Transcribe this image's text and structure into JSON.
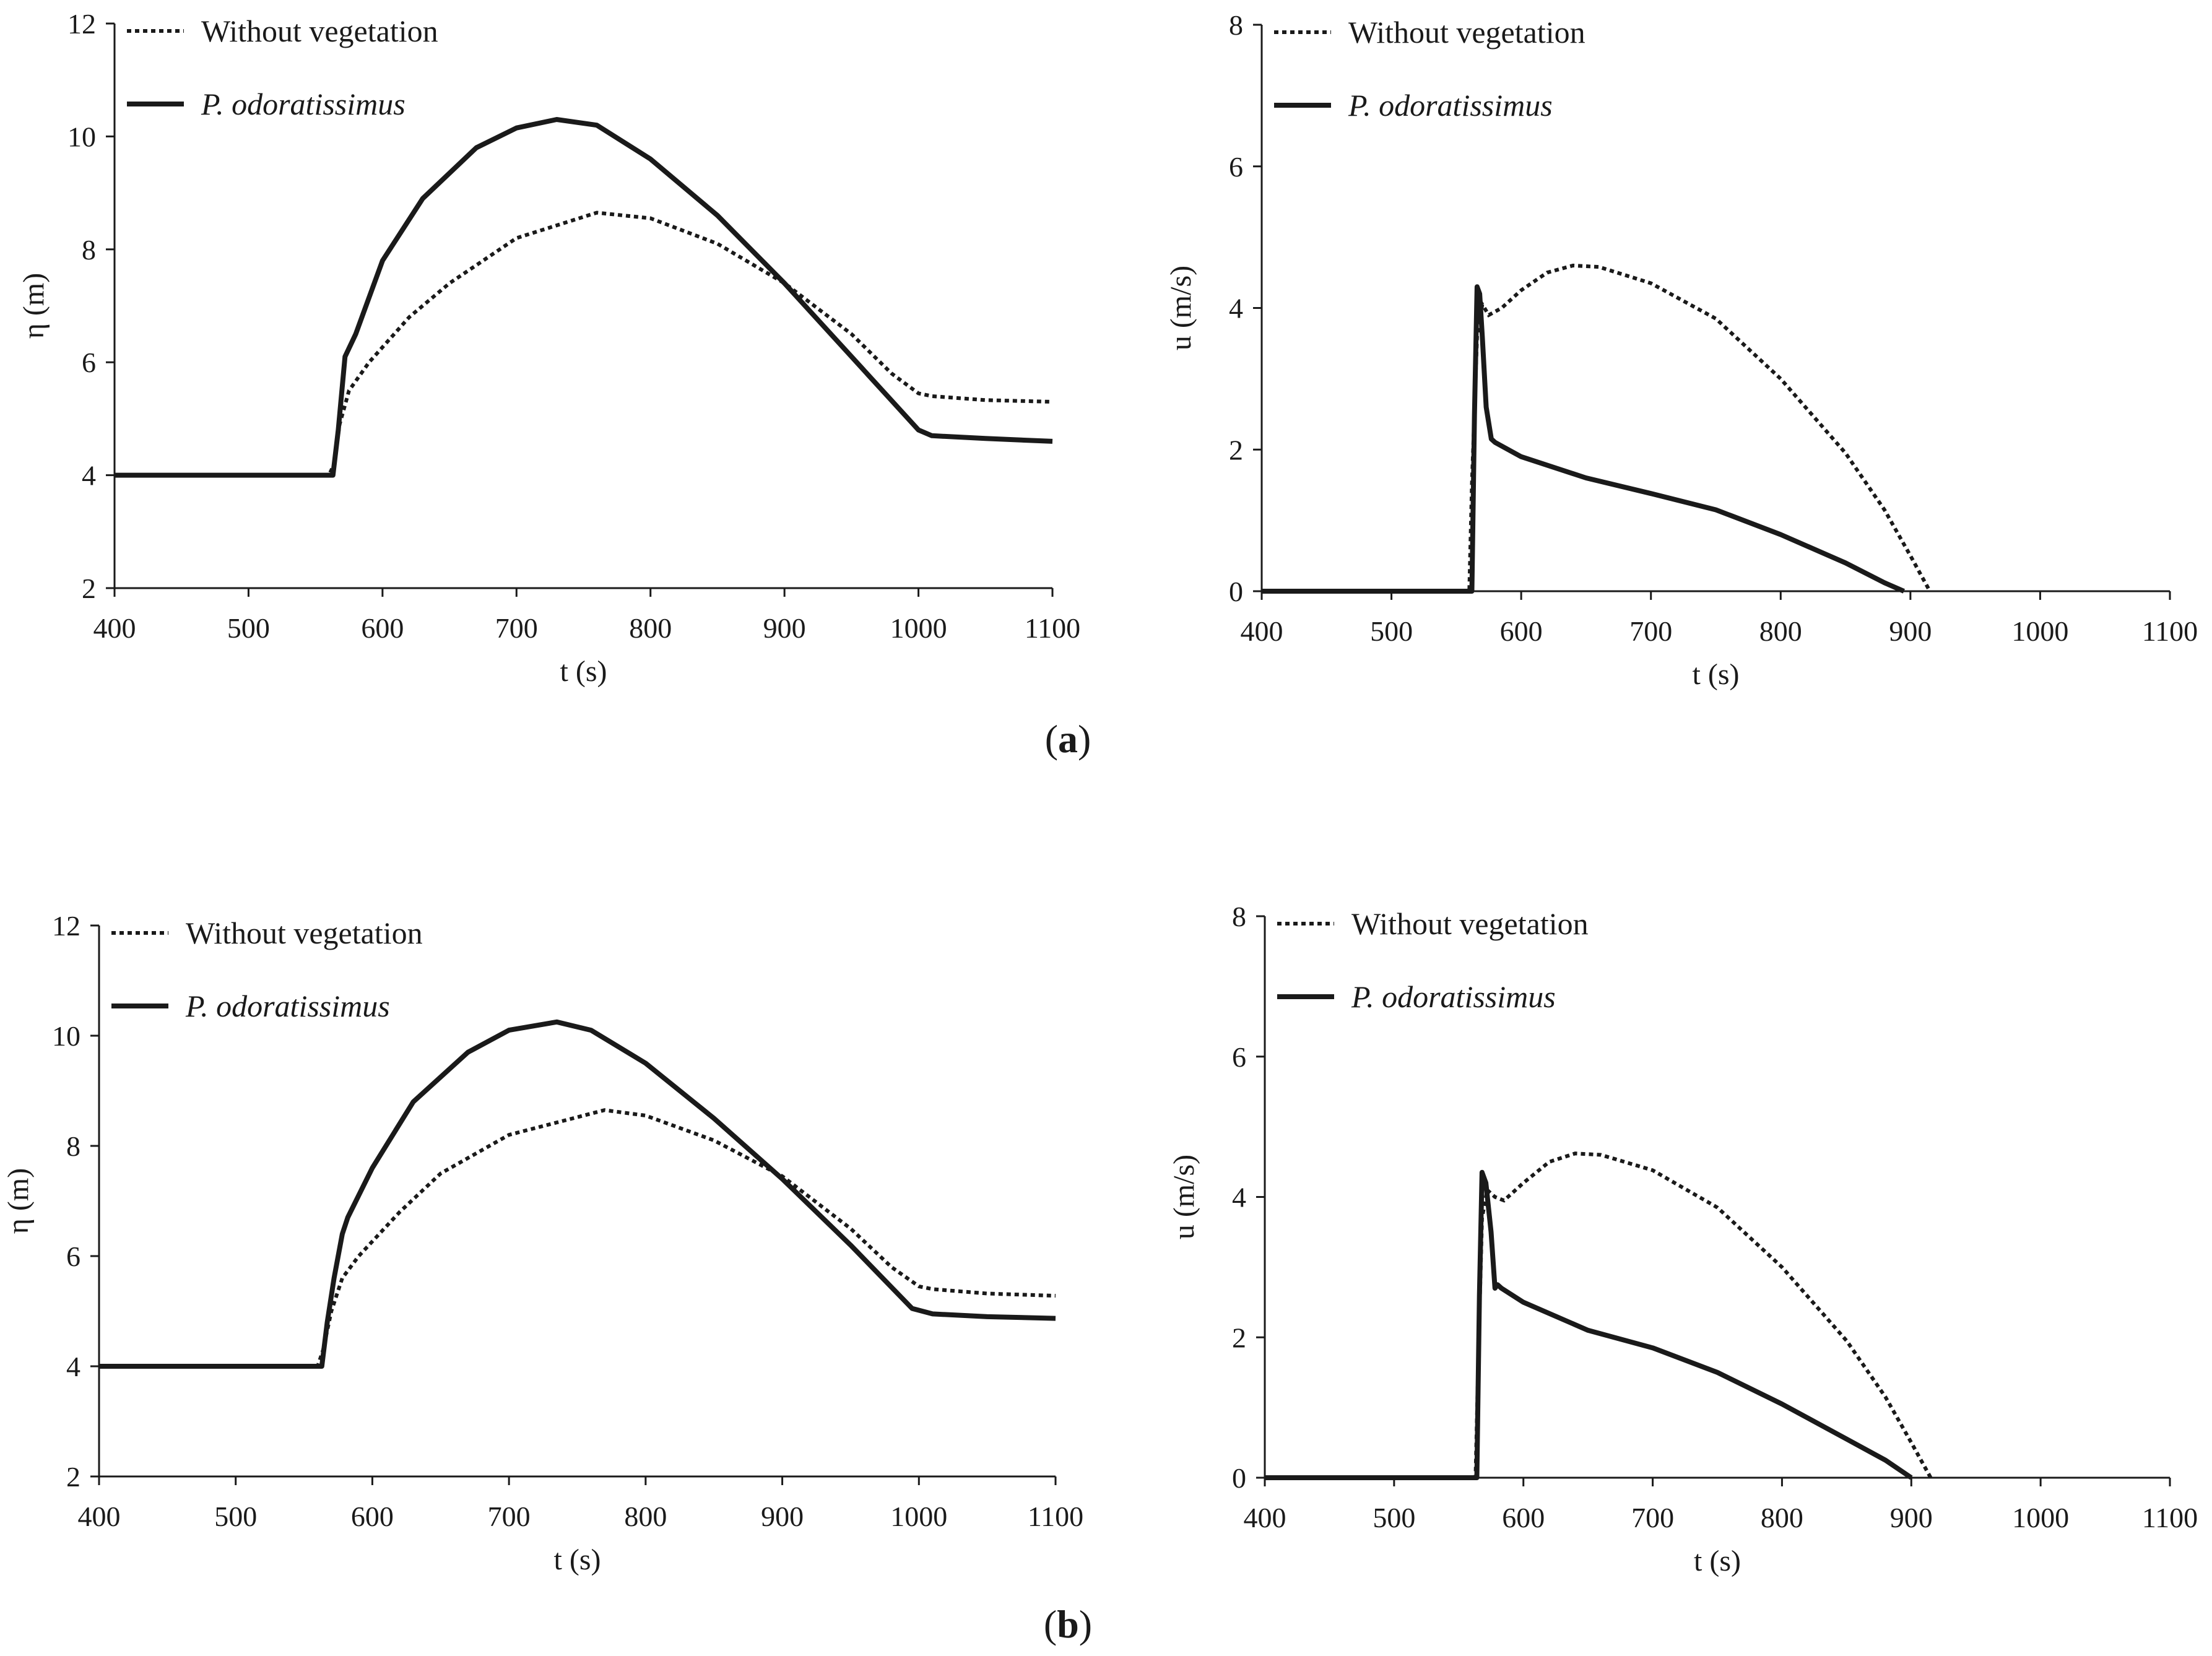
{
  "figure_labels": {
    "a": {
      "open": "(",
      "letter": "a",
      "close": ")"
    },
    "b": {
      "open": "(",
      "letter": "b",
      "close": ")"
    }
  },
  "chart_data": [
    {
      "id": "a-left",
      "type": "line",
      "xlabel": "t (s)",
      "ylabel": "η (m)",
      "xlim": [
        400,
        1100
      ],
      "ylim": [
        2,
        12
      ],
      "xticks": [
        400,
        500,
        600,
        700,
        800,
        900,
        1000,
        1100
      ],
      "yticks": [
        2,
        4,
        6,
        8,
        10,
        12
      ],
      "legend": "top-left",
      "series": [
        {
          "name": "Without vegetation",
          "style": "dotted",
          "x": [
            400,
            560,
            564,
            568,
            575,
            590,
            620,
            650,
            700,
            760,
            800,
            850,
            900,
            950,
            980,
            1000,
            1010,
            1050,
            1100
          ],
          "y": [
            4,
            4,
            4.2,
            4.9,
            5.5,
            6.0,
            6.8,
            7.4,
            8.2,
            8.65,
            8.55,
            8.1,
            7.4,
            6.5,
            5.8,
            5.45,
            5.4,
            5.33,
            5.3
          ]
        },
        {
          "name": "P. odoratissimus",
          "style": "solid",
          "x": [
            400,
            563,
            567,
            572,
            580,
            600,
            630,
            670,
            700,
            730,
            760,
            800,
            850,
            900,
            950,
            1000,
            1010,
            1050,
            1100
          ],
          "y": [
            4,
            4,
            4.8,
            6.1,
            6.5,
            7.8,
            8.9,
            9.8,
            10.15,
            10.3,
            10.2,
            9.6,
            8.6,
            7.4,
            6.1,
            4.8,
            4.7,
            4.65,
            4.6
          ]
        }
      ]
    },
    {
      "id": "a-right",
      "type": "line",
      "xlabel": "t (s)",
      "ylabel": "u (m/s)",
      "xlim": [
        400,
        1100
      ],
      "ylim": [
        0,
        8
      ],
      "xticks": [
        400,
        500,
        600,
        700,
        800,
        900,
        1000,
        1100
      ],
      "yticks": [
        0,
        2,
        4,
        6,
        8
      ],
      "legend": "top-left",
      "series": [
        {
          "name": "Without vegetation",
          "style": "dotted",
          "x": [
            400,
            560,
            562,
            566,
            570,
            575,
            585,
            600,
            620,
            640,
            660,
            700,
            750,
            800,
            850,
            880,
            900,
            915
          ],
          "y": [
            0,
            0,
            1.5,
            3.6,
            4.05,
            3.9,
            4.0,
            4.25,
            4.5,
            4.6,
            4.58,
            4.35,
            3.85,
            3.0,
            1.95,
            1.15,
            0.5,
            0
          ]
        },
        {
          "name": "P. odoratissimus",
          "style": "solid",
          "x": [
            400,
            562,
            564,
            566,
            568,
            570,
            573,
            577,
            580,
            600,
            650,
            700,
            750,
            800,
            850,
            880,
            895
          ],
          "y": [
            0,
            0,
            2.5,
            4.3,
            4.2,
            3.6,
            2.6,
            2.15,
            2.1,
            1.9,
            1.6,
            1.38,
            1.15,
            0.8,
            0.4,
            0.12,
            0
          ]
        }
      ]
    },
    {
      "id": "b-left",
      "type": "line",
      "xlabel": "t (s)",
      "ylabel": "η (m)",
      "xlim": [
        400,
        1100
      ],
      "ylim": [
        2,
        12
      ],
      "xticks": [
        400,
        500,
        600,
        700,
        800,
        900,
        1000,
        1100
      ],
      "yticks": [
        2,
        4,
        6,
        8,
        10,
        12
      ],
      "legend": "top-left",
      "series": [
        {
          "name": "Without vegetation",
          "style": "dotted",
          "x": [
            400,
            560,
            564,
            570,
            578,
            590,
            620,
            650,
            700,
            770,
            800,
            850,
            900,
            950,
            980,
            1000,
            1010,
            1050,
            1100
          ],
          "y": [
            4,
            4,
            4.3,
            5.0,
            5.6,
            6.0,
            6.8,
            7.5,
            8.2,
            8.65,
            8.55,
            8.1,
            7.45,
            6.5,
            5.8,
            5.45,
            5.4,
            5.32,
            5.28
          ]
        },
        {
          "name": "P. odoratissimus",
          "style": "solid",
          "x": [
            400,
            563,
            567,
            572,
            578,
            582,
            600,
            630,
            670,
            700,
            735,
            760,
            800,
            850,
            900,
            950,
            995,
            1010,
            1050,
            1100
          ],
          "y": [
            4,
            4,
            4.8,
            5.6,
            6.4,
            6.7,
            7.6,
            8.8,
            9.7,
            10.1,
            10.25,
            10.1,
            9.5,
            8.5,
            7.4,
            6.2,
            5.05,
            4.95,
            4.9,
            4.87
          ]
        }
      ]
    },
    {
      "id": "b-right",
      "type": "line",
      "xlabel": "t (s)",
      "ylabel": "u (m/s)",
      "xlim": [
        400,
        1100
      ],
      "ylim": [
        0,
        8
      ],
      "xticks": [
        400,
        500,
        600,
        700,
        800,
        900,
        1000,
        1100
      ],
      "yticks": [
        0,
        2,
        4,
        6,
        8
      ],
      "legend": "top-left",
      "series": [
        {
          "name": "Without vegetation",
          "style": "dotted",
          "x": [
            400,
            563,
            565,
            568,
            572,
            578,
            585,
            600,
            620,
            640,
            660,
            700,
            750,
            800,
            850,
            880,
            900,
            915
          ],
          "y": [
            0,
            0,
            1.6,
            3.7,
            4.1,
            4.0,
            3.95,
            4.2,
            4.5,
            4.62,
            4.6,
            4.38,
            3.85,
            3.0,
            1.95,
            1.15,
            0.5,
            0
          ]
        },
        {
          "name": "P. odoratissimus",
          "style": "solid",
          "x": [
            400,
            564,
            566,
            568,
            571,
            575,
            578,
            580,
            583,
            600,
            650,
            700,
            750,
            800,
            850,
            880,
            900
          ],
          "y": [
            0,
            0,
            2.6,
            4.35,
            4.2,
            3.5,
            2.7,
            2.75,
            2.7,
            2.5,
            2.1,
            1.85,
            1.5,
            1.05,
            0.55,
            0.25,
            0
          ]
        }
      ]
    }
  ]
}
